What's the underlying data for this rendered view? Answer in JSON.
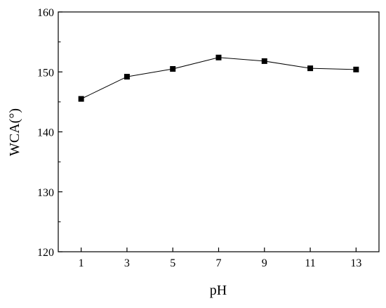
{
  "chart_data": {
    "type": "line",
    "xlabel": "pH",
    "ylabel": "WCA(°)",
    "x": [
      1,
      3,
      5,
      7,
      9,
      11,
      13
    ],
    "series": [
      {
        "values": [
          145.5,
          149.2,
          150.5,
          152.4,
          151.8,
          150.6,
          150.4
        ]
      }
    ],
    "xlim": [
      0,
      14
    ],
    "ylim": [
      120,
      160
    ],
    "xticks": [
      "1",
      "3",
      "5",
      "7",
      "9",
      "11",
      "13"
    ],
    "yticks": [
      "120",
      "130",
      "140",
      "150",
      "160"
    ],
    "marker": "square",
    "grid": false,
    "line_color": "#000000",
    "marker_color": "#000000"
  }
}
